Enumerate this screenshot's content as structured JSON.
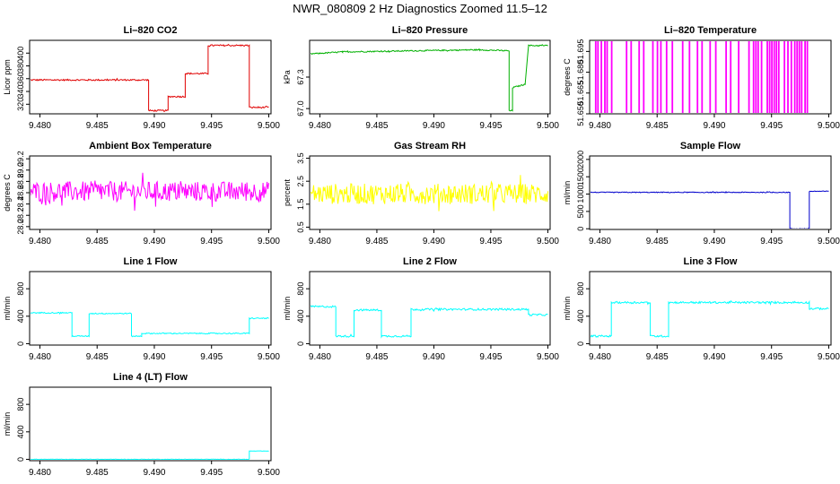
{
  "figure_title": "NWR_080809  2 Hz Diagnostics Zoomed 11.5–12",
  "chart_data": [
    {
      "type": "line",
      "title": "Li–820 CO2",
      "xlabel": "",
      "ylabel": "Licor ppm",
      "color": "#e00000",
      "xlim": [
        9.4791,
        9.5002
      ],
      "ylim": [
        305,
        420
      ],
      "xticks": [
        "9.480",
        "9.485",
        "9.490",
        "9.495",
        "9.500"
      ],
      "yticks": [
        "320",
        "340",
        "360",
        "380",
        "400"
      ],
      "series": [
        {
          "x": [
            9.4791,
            9.4895,
            9.4895,
            9.4912,
            9.4912,
            9.4927,
            9.4927,
            9.4947,
            9.4947,
            9.4983,
            9.4983,
            9.5
          ],
          "y": [
            358,
            358,
            310,
            310,
            332,
            332,
            368,
            368,
            412,
            412,
            315,
            315
          ]
        }
      ],
      "noise": 1.2,
      "grid": false
    },
    {
      "type": "line",
      "title": "Li–820 Pressure",
      "xlabel": "",
      "ylabel": "kPa",
      "color": "#00b000",
      "xlim": [
        9.4791,
        9.5002
      ],
      "ylim": [
        66.95,
        67.65
      ],
      "xticks": [
        "9.480",
        "9.485",
        "9.490",
        "9.495",
        "9.500"
      ],
      "yticks": [
        "67.0",
        "67.3"
      ],
      "series": [
        {
          "x": [
            9.4791,
            9.482,
            9.488,
            9.494,
            9.4966,
            9.4966,
            9.4969,
            9.4969,
            9.498,
            9.4983,
            9.4983,
            9.5
          ],
          "y": [
            67.52,
            67.54,
            67.55,
            67.56,
            67.55,
            66.98,
            66.98,
            67.2,
            67.23,
            67.6,
            67.6,
            67.6
          ]
        }
      ],
      "noise": 0.006,
      "grid": false
    },
    {
      "type": "line",
      "title": "Li–820 Temperature",
      "xlabel": "",
      "ylabel": "degrees C",
      "color": "#ff00ff",
      "xlim": [
        9.4791,
        9.5002
      ],
      "ylim": [
        51.65,
        51.703
      ],
      "xticks": [
        "9.480",
        "9.485",
        "9.490",
        "9.495",
        "9.500"
      ],
      "yticks": [
        "51.650",
        "51.665",
        "51.680",
        "51.695"
      ],
      "series": [
        {
          "low": 51.65,
          "high": 51.703,
          "spikes": [
            9.4796,
            9.4798,
            9.4801,
            9.4804,
            9.4806,
            9.481,
            9.4823,
            9.4827,
            9.4834,
            9.4838,
            9.4846,
            9.485,
            9.4853,
            9.4858,
            9.4863,
            9.4872,
            9.4878,
            9.4885,
            9.4889,
            9.4896,
            9.4901,
            9.491,
            9.4914,
            9.4921,
            9.493,
            9.4934,
            9.4936,
            9.4938,
            9.4941,
            9.4946,
            9.4948,
            9.495,
            9.4952,
            9.4954,
            9.4956,
            9.4961,
            9.4964,
            9.4967,
            9.497,
            9.4972,
            9.4974,
            9.4976,
            9.4979,
            9.4981
          ]
        }
      ],
      "grid": false
    },
    {
      "type": "line",
      "title": "Ambient Box Temperature",
      "xlabel": "",
      "ylabel": "degrees C",
      "color": "#ff00ff",
      "xlim": [
        9.4791,
        9.5002
      ],
      "ylim": [
        27.95,
        29.25
      ],
      "xticks": [
        "9.480",
        "9.485",
        "9.490",
        "9.495",
        "9.500"
      ],
      "yticks": [
        "28.0",
        "28.2",
        "28.4",
        "28.6",
        "28.8",
        "29.0",
        "29.2"
      ],
      "series": [
        {
          "x": [
            9.4791,
            9.5
          ],
          "y": [
            28.62,
            28.62
          ]
        }
      ],
      "noise": 0.18,
      "grid": false
    },
    {
      "type": "line",
      "title": "Gas Stream RH",
      "xlabel": "",
      "ylabel": "percent",
      "color": "#ffff00",
      "xlim": [
        9.4791,
        9.5002
      ],
      "ylim": [
        0.4,
        3.6
      ],
      "xticks": [
        "9.480",
        "9.485",
        "9.490",
        "9.495",
        "9.500"
      ],
      "yticks": [
        "0.5",
        "1.5",
        "2.5",
        "3.5"
      ],
      "series": [
        {
          "x": [
            9.4791,
            9.5
          ],
          "y": [
            1.95,
            1.95
          ]
        }
      ],
      "noise": 0.45,
      "grid": false
    },
    {
      "type": "line",
      "title": "Sample Flow",
      "xlabel": "",
      "ylabel": "ml/min",
      "color": "#0000cc",
      "xlim": [
        9.4791,
        9.5002
      ],
      "ylim": [
        -20,
        2100
      ],
      "xticks": [
        "9.480",
        "9.485",
        "9.490",
        "9.495",
        "9.500"
      ],
      "yticks": [
        "0",
        "500",
        "1000",
        "1500",
        "2000"
      ],
      "series": [
        {
          "x": [
            9.4791,
            9.4966,
            9.4966,
            9.4983,
            9.4983,
            9.5
          ],
          "y": [
            1050,
            1050,
            0,
            0,
            1080,
            1080
          ]
        }
      ],
      "noise": 12,
      "grid": false
    },
    {
      "type": "line",
      "title": "Line 1 Flow",
      "xlabel": "",
      "ylabel": "ml/min",
      "color": "#00ffff",
      "xlim": [
        9.4791,
        9.5002
      ],
      "ylim": [
        -20,
        1050
      ],
      "xticks": [
        "9.480",
        "9.485",
        "9.490",
        "9.495",
        "9.500"
      ],
      "yticks": [
        "0",
        "400",
        "800"
      ],
      "series": [
        {
          "x": [
            9.4791,
            9.4828,
            9.4828,
            9.4843,
            9.4843,
            9.488,
            9.488,
            9.4889,
            9.4889,
            9.4983,
            9.4983,
            9.5
          ],
          "y": [
            450,
            450,
            110,
            110,
            440,
            440,
            110,
            110,
            150,
            150,
            370,
            370
          ]
        }
      ],
      "noise": 8,
      "grid": false
    },
    {
      "type": "line",
      "title": "Line 2 Flow",
      "xlabel": "",
      "ylabel": "ml/min",
      "color": "#00ffff",
      "xlim": [
        9.4791,
        9.5002
      ],
      "ylim": [
        -20,
        1050
      ],
      "xticks": [
        "9.480",
        "9.485",
        "9.490",
        "9.495",
        "9.500"
      ],
      "yticks": [
        "0",
        "400",
        "800"
      ],
      "series": [
        {
          "x": [
            9.4791,
            9.4814,
            9.4814,
            9.483,
            9.483,
            9.4854,
            9.4854,
            9.488,
            9.488,
            9.4983,
            9.4983,
            9.5
          ],
          "y": [
            540,
            540,
            110,
            110,
            490,
            490,
            110,
            110,
            500,
            500,
            420,
            420
          ]
        }
      ],
      "noise": 14,
      "grid": false
    },
    {
      "type": "line",
      "title": "Line 3 Flow",
      "xlabel": "",
      "ylabel": "ml/min",
      "color": "#00ffff",
      "xlim": [
        9.4791,
        9.5002
      ],
      "ylim": [
        -20,
        1050
      ],
      "xticks": [
        "9.480",
        "9.485",
        "9.490",
        "9.495",
        "9.500"
      ],
      "yticks": [
        "0",
        "400",
        "800"
      ],
      "series": [
        {
          "x": [
            9.4791,
            9.481,
            9.481,
            9.4844,
            9.4844,
            9.486,
            9.486,
            9.4983,
            9.4983,
            9.5
          ],
          "y": [
            110,
            110,
            600,
            600,
            110,
            110,
            600,
            600,
            510,
            510
          ]
        }
      ],
      "noise": 14,
      "grid": false
    },
    {
      "type": "line",
      "title": "Line 4 (LT) Flow",
      "xlabel": "",
      "ylabel": "ml/min",
      "color": "#00ffff",
      "xlim": [
        9.4791,
        9.5002
      ],
      "ylim": [
        -20,
        1050
      ],
      "xticks": [
        "9.480",
        "9.485",
        "9.490",
        "9.495",
        "9.500"
      ],
      "yticks": [
        "0",
        "400",
        "800"
      ],
      "series": [
        {
          "x": [
            9.4791,
            9.4983,
            9.4983,
            9.5
          ],
          "y": [
            0,
            0,
            120,
            120
          ]
        }
      ],
      "noise": 3,
      "grid": false
    }
  ]
}
